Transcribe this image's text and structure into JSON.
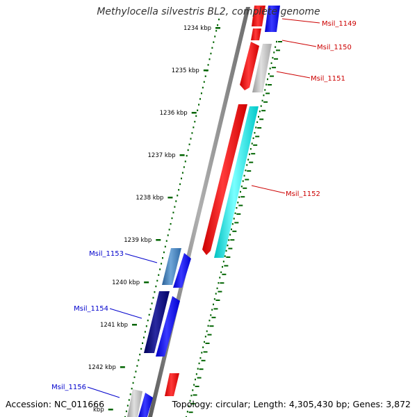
{
  "title": "Methylocella silvestris BL2, complete genome",
  "footer": {
    "accession": "Accession: NC_011666",
    "summary": "Topology: circular; Length: 4,305,430 bp; Genes: 3,872"
  },
  "colors": {
    "forward_gene": "#ff0000",
    "reverse_gene": "#0000ff",
    "backbone": "#808080",
    "scale_ticks": "#006400",
    "label_forward": "#cc0000",
    "label_reverse": "#0000cc",
    "gray_gene": "#bbbbbb",
    "cyan_gene": "#00e0e0",
    "steel_gene": "#3a7fc0",
    "navy_gene": "#000080"
  },
  "scale_ticks": [
    {
      "kbp": 1234,
      "label": "1234 kbp"
    },
    {
      "kbp": 1235,
      "label": "1235 kbp"
    },
    {
      "kbp": 1236,
      "label": "1236 kbp"
    },
    {
      "kbp": 1237,
      "label": "1237 kbp"
    },
    {
      "kbp": 1238,
      "label": "1238 kbp"
    },
    {
      "kbp": 1239,
      "label": "1239 kbp"
    },
    {
      "kbp": 1240,
      "label": "1240 kbp"
    },
    {
      "kbp": 1241,
      "label": "1241 kbp"
    },
    {
      "kbp": 1242,
      "label": "1242 kbp"
    },
    {
      "kbp": 1243,
      "label": "kbp"
    }
  ],
  "gene_labels": [
    {
      "name": "Msil_1149",
      "strand": "forward"
    },
    {
      "name": "Msil_1150",
      "strand": "forward"
    },
    {
      "name": "Msil_1151",
      "strand": "forward"
    },
    {
      "name": "Msil_1152",
      "strand": "forward"
    },
    {
      "name": "Msil_1153",
      "strand": "reverse"
    },
    {
      "name": "Msil_1154",
      "strand": "reverse"
    },
    {
      "name": "Msil_1156",
      "strand": "reverse"
    }
  ]
}
